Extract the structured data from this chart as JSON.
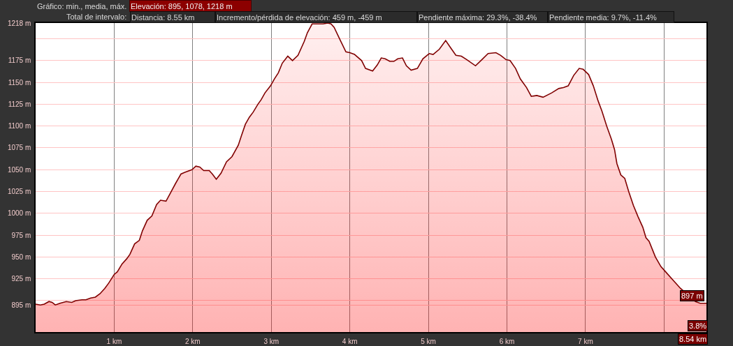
{
  "chart_data": {
    "type": "area",
    "annotations": [
      "Gráfico: min., media, máx.",
      "Elevación: 895, 1078, 1218 m",
      "Total de intervalo:",
      "Distancia: 8.55 km",
      "Incremento/pérdida de elevación: 459 m, -459 m",
      "Pendiente máxima: 29.3%, -38.4%",
      "Pendiente media: 9.7%, -11.4%",
      "897 m",
      "3.8%",
      "8.54 km"
    ],
    "x": [
      0.0,
      0.06,
      0.11,
      0.17,
      0.21,
      0.25,
      0.31,
      0.39,
      0.46,
      0.51,
      0.59,
      0.64,
      0.7,
      0.76,
      0.82,
      0.88,
      0.93,
      1.0,
      1.04,
      1.1,
      1.16,
      1.2,
      1.26,
      1.32,
      1.36,
      1.42,
      1.48,
      1.54,
      1.59,
      1.66,
      1.72,
      1.78,
      1.85,
      1.9,
      1.99,
      2.04,
      2.09,
      2.14,
      2.21,
      2.25,
      2.3,
      2.36,
      2.43,
      2.5,
      2.58,
      2.62,
      2.67,
      2.72,
      2.77,
      2.83,
      2.87,
      2.92,
      2.99,
      3.04,
      3.09,
      3.14,
      3.21,
      3.27,
      3.34,
      3.42,
      3.46,
      3.52,
      3.58,
      3.66,
      3.72,
      3.76,
      3.8,
      3.88,
      3.95,
      4.0,
      4.06,
      4.15,
      4.2,
      4.29,
      4.35,
      4.4,
      4.45,
      4.51,
      4.56,
      4.61,
      4.67,
      4.72,
      4.78,
      4.86,
      4.93,
      5.01,
      5.06,
      5.14,
      5.22,
      5.28,
      5.35,
      5.42,
      5.49,
      5.6,
      5.68,
      5.76,
      5.86,
      5.92,
      5.99,
      6.04,
      6.11,
      6.17,
      6.25,
      6.31,
      6.38,
      6.46,
      6.57,
      6.66,
      6.72,
      6.78,
      6.85,
      6.92,
      6.97,
      7.04,
      7.1,
      7.16,
      7.21,
      7.27,
      7.33,
      7.37,
      7.4,
      7.45,
      7.5,
      7.55,
      7.61,
      7.67,
      7.73,
      7.77,
      7.81,
      7.89,
      7.96,
      8.02,
      8.11,
      8.21,
      8.32,
      8.4,
      8.46,
      8.54
    ],
    "series": [
      {
        "color": "#800000",
        "values": [
          896,
          895,
          896,
          899,
          898,
          895,
          897,
          899,
          898,
          900,
          901,
          901,
          903,
          904,
          908,
          914,
          920,
          930,
          933,
          942,
          948,
          953,
          965,
          969,
          980,
          992,
          997,
          1010,
          1015,
          1014,
          1024,
          1034,
          1045,
          1047,
          1050,
          1054,
          1053,
          1049,
          1049,
          1045,
          1039,
          1046,
          1059,
          1065,
          1078,
          1089,
          1102,
          1110,
          1116,
          1125,
          1130,
          1138,
          1146,
          1154,
          1161,
          1172,
          1180,
          1175,
          1181,
          1197,
          1207,
          1217,
          1217,
          1217,
          1218,
          1217,
          1213,
          1198,
          1185,
          1184,
          1182,
          1175,
          1166,
          1163,
          1170,
          1178,
          1177,
          1174,
          1174,
          1177,
          1178,
          1169,
          1164,
          1166,
          1177,
          1183,
          1182,
          1188,
          1198,
          1190,
          1181,
          1180,
          1176,
          1169,
          1176,
          1183,
          1184,
          1181,
          1176,
          1175,
          1166,
          1154,
          1144,
          1134,
          1135,
          1133,
          1138,
          1143,
          1144,
          1146,
          1158,
          1166,
          1165,
          1159,
          1146,
          1129,
          1117,
          1100,
          1085,
          1073,
          1057,
          1044,
          1040,
          1025,
          1009,
          996,
          984,
          972,
          968,
          950,
          939,
          933,
          924,
          914,
          null,
          899,
          897,
          897
        ]
      }
    ],
    "xlim": [
      0,
      8.54
    ],
    "ylim": [
      864,
      1218
    ],
    "xticks": [
      {
        "value": 1,
        "label": "1 km"
      },
      {
        "value": 2,
        "label": "2 km"
      },
      {
        "value": 3,
        "label": "3 km"
      },
      {
        "value": 4,
        "label": "4 km"
      },
      {
        "value": 5,
        "label": "5 km"
      },
      {
        "value": 6,
        "label": "6 km"
      },
      {
        "value": 7,
        "label": "7 km"
      },
      {
        "value": 8,
        "label": null
      }
    ],
    "yticks": [
      {
        "value": 895,
        "label": "895 m"
      },
      {
        "value": 900,
        "label": null
      },
      {
        "value": 925,
        "label": "925 m"
      },
      {
        "value": 950,
        "label": "950 m"
      },
      {
        "value": 975,
        "label": "975 m"
      },
      {
        "value": 1000,
        "label": "1000 m"
      },
      {
        "value": 1025,
        "label": "1025 m"
      },
      {
        "value": 1050,
        "label": "1050 m"
      },
      {
        "value": 1075,
        "label": "1075 m"
      },
      {
        "value": 1100,
        "label": "1100 m"
      },
      {
        "value": 1125,
        "label": "1125 m"
      },
      {
        "value": 1150,
        "label": "1150 m"
      },
      {
        "value": 1175,
        "label": "1175 m"
      },
      {
        "value": 1200,
        "label": null
      },
      {
        "value": 1218,
        "label": "1218 m"
      }
    ],
    "grid": true,
    "line_style": "solid"
  }
}
